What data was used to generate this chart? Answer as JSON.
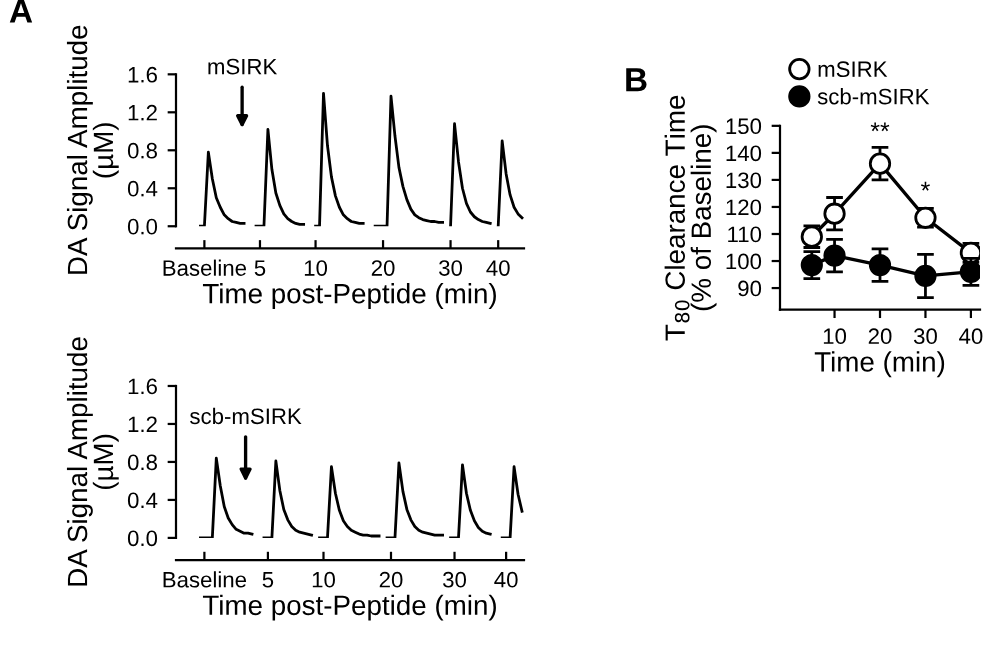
{
  "chart_data": [
    {
      "type": "line",
      "ylabel": "DA Signal Amplitude\n(µM)",
      "xlabel": "Time post-Peptide (min)",
      "legend": false,
      "grid": false,
      "marker": "none",
      "line_style": "solid",
      "annotations": [
        "A",
        "mSIRK"
      ],
      "ylim": [
        0,
        1.6
      ],
      "yticks": [
        {
          "value": 0,
          "label": "0.0"
        },
        0.4,
        0.8,
        1.2,
        1.6
      ],
      "categories": [
        null,
        "Baseline",
        null,
        null,
        null,
        null,
        null,
        null,
        null,
        null,
        null,
        null,
        null,
        null,
        null,
        "5",
        null,
        null,
        null,
        null,
        null,
        null,
        null,
        null,
        null,
        null,
        null,
        null,
        null,
        "10",
        null,
        null,
        null,
        null,
        null,
        null,
        null,
        null,
        null,
        null,
        null,
        null,
        null,
        null,
        null,
        null,
        "20",
        null,
        null,
        null,
        null,
        null,
        null,
        null,
        null,
        null,
        null,
        null,
        null,
        null,
        null,
        null,
        null,
        "30",
        null,
        null,
        null,
        null,
        null,
        null,
        null,
        null,
        null,
        null,
        null,
        "40",
        null,
        null,
        null,
        null,
        null,
        null
      ],
      "series": [
        {
          "color": "#000000",
          "values": [
            0.0,
            0.0,
            0.78,
            0.5,
            0.3,
            0.2,
            0.12,
            0.08,
            0.05,
            0.04,
            0.03,
            0.03,
            null,
            null,
            0.0,
            0.0,
            0.0,
            1.02,
            0.6,
            0.35,
            0.22,
            0.13,
            0.08,
            0.05,
            0.03,
            0.02,
            0.02,
            null,
            null,
            0.0,
            0.0,
            1.4,
            0.85,
            0.52,
            0.32,
            0.2,
            0.12,
            0.08,
            0.05,
            0.04,
            0.03,
            0.03,
            null,
            null,
            0.0,
            0.0,
            0.0,
            0.0,
            1.37,
            0.95,
            0.62,
            0.42,
            0.28,
            0.18,
            0.12,
            0.09,
            0.07,
            0.06,
            0.05,
            0.05,
            0.04,
            0.04,
            null,
            0.0,
            1.08,
            0.68,
            0.4,
            0.24,
            0.15,
            0.1,
            0.07,
            0.05,
            0.04,
            0.03,
            null,
            0.0,
            0.9,
            0.55,
            0.33,
            0.2,
            0.13,
            0.09
          ]
        }
      ]
    },
    {
      "type": "line",
      "ylabel": "DA Signal Amplitude\n(µM)",
      "xlabel": "Time post-Peptide (min)",
      "legend": false,
      "grid": false,
      "marker": "none",
      "line_style": "solid",
      "annotations": [
        "scb-mSIRK"
      ],
      "ylim": [
        0,
        1.6
      ],
      "yticks": [
        {
          "value": 0,
          "label": "0.0"
        },
        0.4,
        0.8,
        1.2,
        1.6
      ],
      "categories": [
        null,
        "Baseline",
        null,
        null,
        null,
        null,
        null,
        null,
        null,
        null,
        null,
        null,
        null,
        null,
        null,
        null,
        null,
        "5",
        null,
        null,
        null,
        null,
        null,
        null,
        null,
        null,
        null,
        null,
        null,
        null,
        null,
        "10",
        null,
        null,
        null,
        null,
        null,
        null,
        null,
        null,
        null,
        null,
        null,
        null,
        null,
        null,
        null,
        null,
        "20",
        null,
        null,
        null,
        null,
        null,
        null,
        null,
        null,
        null,
        null,
        null,
        null,
        null,
        null,
        null,
        "30",
        null,
        null,
        null,
        null,
        null,
        null,
        null,
        null,
        null,
        null,
        null,
        null,
        "40",
        null,
        null,
        null,
        null
      ],
      "series": [
        {
          "color": "#000000",
          "values": [
            0.0,
            0.0,
            0.0,
            0.0,
            0.84,
            0.55,
            0.33,
            0.21,
            0.14,
            0.09,
            0.07,
            0.05,
            0.05,
            0.04,
            null,
            null,
            0.0,
            0.0,
            0.0,
            0.81,
            0.5,
            0.3,
            0.19,
            0.12,
            0.08,
            0.06,
            0.05,
            0.04,
            0.03,
            null,
            0.0,
            0.0,
            0.0,
            0.75,
            0.47,
            0.29,
            0.18,
            0.12,
            0.08,
            0.06,
            0.04,
            0.03,
            0.03,
            0.02,
            0.02,
            0.02,
            null,
            0.0,
            0.0,
            0.0,
            0.79,
            0.49,
            0.3,
            0.19,
            0.12,
            0.08,
            0.06,
            0.05,
            0.04,
            0.03,
            0.03,
            0.03,
            null,
            0.0,
            0.0,
            0.0,
            0.77,
            0.47,
            0.29,
            0.18,
            0.11,
            0.07,
            0.05,
            0.04,
            null,
            null,
            0.0,
            0.0,
            0.0,
            0.75,
            0.46,
            0.28
          ]
        }
      ]
    },
    {
      "type": "line",
      "ylabel": "T$_{80}$ Clearance Time\n(% of Baseline)",
      "xlabel": "Time (min)",
      "legend": "top",
      "grid": false,
      "marker": "circle",
      "line_style": "solid",
      "annotations": [
        "B",
        {
          "text": "**",
          "x": 20,
          "y": 143
        },
        {
          "text": "*",
          "x": 30,
          "y": 121
        }
      ],
      "x": [
        5,
        10,
        20,
        30,
        40
      ],
      "xlim": [
        -2,
        42
      ],
      "xticks": [
        10,
        20,
        30,
        40
      ],
      "ylim": [
        82,
        150
      ],
      "yticks": [
        90,
        100,
        110,
        120,
        130,
        140,
        150
      ],
      "series": [
        {
          "name": "mSIRK",
          "color": "#ffffff",
          "values": [
            109,
            117.5,
            136,
            116,
            103
          ],
          "errors": [
            4,
            6,
            6,
            3.5,
            3.5
          ]
        },
        {
          "name": "scb-mSIRK",
          "color": "#000000",
          "values": [
            98.5,
            102,
            98.5,
            94.5,
            96
          ],
          "errors": [
            5,
            6,
            6,
            8,
            5
          ]
        }
      ]
    }
  ]
}
